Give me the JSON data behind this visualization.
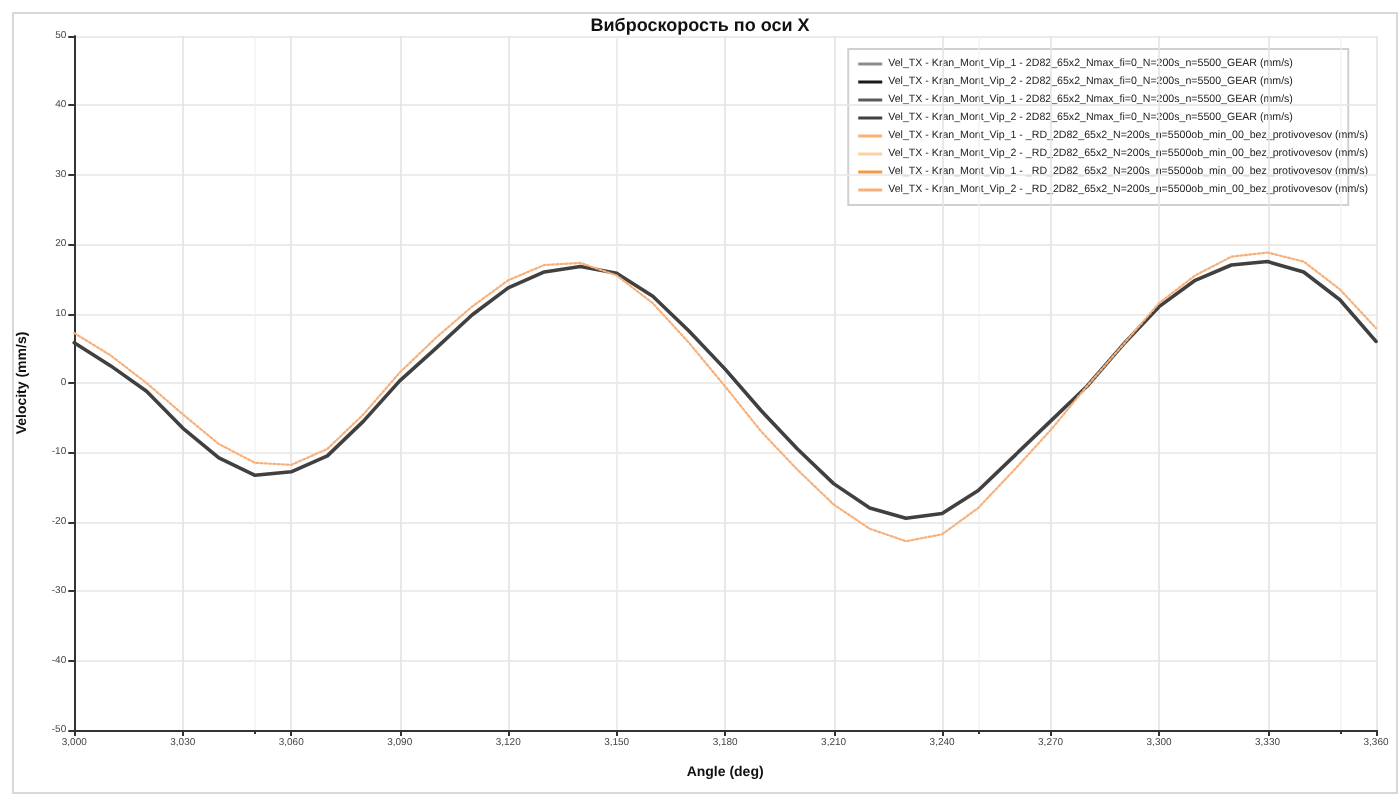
{
  "chart_data": {
    "type": "line",
    "title": "Виброскорость по оси X",
    "xlabel": "Angle (deg)",
    "ylabel": "Velocity (mm/s)",
    "x": [
      3000,
      3010,
      3020,
      3030,
      3040,
      3050,
      3060,
      3070,
      3080,
      3090,
      3100,
      3110,
      3120,
      3130,
      3140,
      3150,
      3160,
      3170,
      3180,
      3190,
      3200,
      3210,
      3220,
      3230,
      3240,
      3250,
      3260,
      3270,
      3280,
      3290,
      3300,
      3310,
      3320,
      3330,
      3340,
      3350,
      3360
    ],
    "series": [
      {
        "name": "Vel_TX - Kran_Mont_Vip_1 - 2D82_65x2_Nmax_fi=0_N=200s_n=5500_GEAR (mm/s)",
        "color": "#8c8c8c",
        "line_style": "solid",
        "values": [
          null,
          null,
          null,
          null,
          null,
          null,
          null,
          null,
          null,
          null,
          null,
          null,
          null,
          null,
          null,
          null,
          null,
          null,
          null,
          null,
          null,
          null,
          null,
          null,
          null,
          null,
          null,
          null,
          null,
          null,
          null,
          null,
          null,
          null,
          null,
          null,
          null
        ]
      },
      {
        "name": "Vel_TX - Kran_Mont_Vip_2 - 2D82_65x2_Nmax_fi=0_N=200s_n=5500_GEAR (mm/s)",
        "color": "#1a1a1a",
        "line_style": "solid",
        "values": [
          null,
          null,
          null,
          null,
          null,
          null,
          null,
          null,
          null,
          null,
          null,
          null,
          null,
          null,
          null,
          null,
          null,
          null,
          null,
          null,
          null,
          null,
          null,
          null,
          null,
          null,
          null,
          null,
          null,
          null,
          null,
          null,
          null,
          null,
          null,
          null,
          null
        ]
      },
      {
        "name": "Vel_TX - Kran_Mont_Vip_1 - 2D82_65x2_Nmax_fi=0_N=200s_n=5500_GEAR (mm/s)",
        "color": "#5a5a5a",
        "line_style": "solid",
        "values": [
          null,
          null,
          null,
          null,
          null,
          null,
          null,
          null,
          null,
          null,
          null,
          null,
          null,
          null,
          null,
          null,
          null,
          null,
          null,
          null,
          null,
          null,
          null,
          null,
          null,
          null,
          null,
          null,
          null,
          null,
          null,
          null,
          null,
          null,
          null,
          null,
          null
        ]
      },
      {
        "name": "Vel_TX - Kran_Mont_Vip_2 - 2D82_65x2_Nmax_fi=0_N=200s_n=5500_GEAR (mm/s)",
        "color": "#404040",
        "line_style": "solid",
        "values": [
          5.8,
          2.5,
          -1.2,
          -6.5,
          -10.8,
          -13.3,
          -12.8,
          -10.5,
          -5.5,
          0.3,
          5.0,
          9.8,
          13.7,
          16.0,
          16.8,
          15.8,
          12.5,
          7.5,
          2.0,
          -4.0,
          -9.5,
          -14.5,
          -18.0,
          -19.5,
          -18.8,
          -15.5,
          -10.5,
          -5.5,
          -0.5,
          5.5,
          11.0,
          14.8,
          17.0,
          17.5,
          16.0,
          12.0,
          6.0
        ]
      },
      {
        "name": "Vel_TX - Kran_Mont_Vip_1 - _RD_2D82_65x2_N=200s_n=5500ob_min_00_bez_protivovesov (mm/s)",
        "color": "#f8b46e",
        "line_style": "solid",
        "values": [
          null,
          null,
          null,
          null,
          null,
          null,
          null,
          null,
          null,
          null,
          null,
          null,
          null,
          null,
          null,
          null,
          null,
          null,
          null,
          null,
          null,
          null,
          null,
          null,
          null,
          null,
          null,
          null,
          null,
          null,
          null,
          null,
          null,
          null,
          null,
          null,
          null
        ]
      },
      {
        "name": "Vel_TX - Kran_Mont_Vip_2 - _RD_2D82_65x2_N=200s_n=5500ob_min_00_bez_protivovesov (mm/s)",
        "color": "#fad0a5",
        "line_style": "solid",
        "values": [
          null,
          null,
          null,
          null,
          null,
          null,
          null,
          null,
          null,
          null,
          null,
          null,
          null,
          null,
          null,
          null,
          null,
          null,
          null,
          null,
          null,
          null,
          null,
          null,
          null,
          null,
          null,
          null,
          null,
          null,
          null,
          null,
          null,
          null,
          null,
          null,
          null
        ]
      },
      {
        "name": "Vel_TX - Kran_Mont_Vip_1 - _RD_2D82_65x2_N=200s_n=5500ob_min_00_bez_protivovesov (mm/s)",
        "color": "#f39a45",
        "line_style": "solid",
        "values": [
          null,
          null,
          null,
          null,
          null,
          null,
          null,
          null,
          null,
          null,
          null,
          null,
          null,
          null,
          null,
          null,
          null,
          null,
          null,
          null,
          null,
          null,
          null,
          null,
          null,
          null,
          null,
          null,
          null,
          null,
          null,
          null,
          null,
          null,
          null,
          null,
          null
        ]
      },
      {
        "name": "Vel_TX - Kran_Mont_Vip_2 - _RD_2D82_65x2_N=200s_n=5500ob_min_00_bez_protivovesov (mm/s)",
        "color": "#f7b07a",
        "line_style": "dotted",
        "values": [
          7.2,
          4.0,
          0.0,
          -4.5,
          -8.8,
          -11.5,
          -11.8,
          -9.5,
          -4.5,
          1.5,
          6.5,
          11.0,
          14.8,
          17.0,
          17.3,
          15.5,
          11.5,
          5.8,
          -0.5,
          -7.0,
          -12.5,
          -17.5,
          -21.0,
          -22.8,
          -21.8,
          -18.0,
          -12.5,
          -6.8,
          -0.5,
          5.5,
          11.5,
          15.5,
          18.2,
          18.8,
          17.5,
          13.5,
          7.9
        ]
      }
    ],
    "xlim": [
      3000,
      3360
    ],
    "xticks": [
      {
        "value": 3000,
        "label": "3,000"
      },
      {
        "value": 3030,
        "label": "3,030"
      },
      {
        "value": 3060,
        "label": "3,060"
      },
      {
        "value": 3090,
        "label": "3,090"
      },
      {
        "value": 3120,
        "label": "3,120"
      },
      {
        "value": 3150,
        "label": "3,150"
      },
      {
        "value": 3180,
        "label": "3,180"
      },
      {
        "value": 3210,
        "label": "3,210"
      },
      {
        "value": 3240,
        "label": "3,240"
      },
      {
        "value": 3270,
        "label": "3,270"
      },
      {
        "value": 3300,
        "label": "3,300"
      },
      {
        "value": 3330,
        "label": "3,330"
      },
      {
        "value": 3360,
        "label": "3,360"
      }
    ],
    "ylim": [
      -50,
      50
    ],
    "yticks": [
      -50,
      -40,
      -30,
      -20,
      -10,
      0,
      10,
      20,
      30,
      40,
      50
    ],
    "grid": true,
    "legend": "top right",
    "marker": "none"
  }
}
